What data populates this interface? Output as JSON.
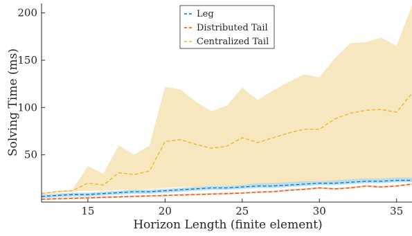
{
  "chart_data": {
    "type": "line",
    "xlabel": "Horizon Length (finite element)",
    "ylabel": "Solving Time (ms)",
    "xlim": [
      12,
      36
    ],
    "ylim": [
      0,
      210
    ],
    "xticks": [
      15,
      20,
      25,
      30,
      35
    ],
    "yticks": [
      50,
      100,
      150,
      200
    ],
    "grid": false,
    "legend_position": "top-center",
    "x": [
      12,
      13,
      14,
      15,
      16,
      17,
      18,
      19,
      20,
      21,
      22,
      23,
      24,
      25,
      26,
      27,
      28,
      29,
      30,
      31,
      32,
      33,
      34,
      35,
      36
    ],
    "series": [
      {
        "name": "Leg",
        "color": "#0072BD",
        "band_color": "#ADD8F0",
        "mean": [
          6,
          7,
          8,
          8,
          9,
          10,
          11,
          11,
          12,
          13,
          14,
          15,
          15,
          16,
          17,
          17,
          18,
          19,
          20,
          20,
          21,
          22,
          22,
          23,
          23
        ],
        "upper": [
          8,
          9,
          10,
          10,
          11,
          12,
          13,
          13,
          14,
          15,
          16,
          17,
          17,
          18,
          20,
          20,
          21,
          22,
          22,
          23,
          24,
          25,
          25,
          26,
          26
        ],
        "lower": [
          4,
          5,
          6,
          6,
          7,
          8,
          9,
          9,
          10,
          11,
          12,
          13,
          13,
          14,
          15,
          15,
          16,
          17,
          18,
          18,
          19,
          20,
          20,
          21,
          21
        ]
      },
      {
        "name": "Distributed Tail",
        "color": "#D95319",
        "band_color": "#F5C9A9",
        "mean": [
          3,
          3.5,
          4,
          4.5,
          5,
          5.5,
          6,
          6.5,
          7,
          7.5,
          8,
          8.5,
          9,
          9.5,
          10.5,
          11,
          12.5,
          13.5,
          15,
          14,
          15,
          17,
          16,
          17,
          19
        ],
        "upper": [
          4,
          4.5,
          5,
          5.5,
          6,
          6.5,
          7,
          7.5,
          8,
          8.5,
          9,
          9.5,
          10,
          10.5,
          11.5,
          12,
          13.5,
          14.5,
          16,
          15,
          16,
          18,
          17,
          18,
          20
        ],
        "lower": [
          2,
          2.5,
          3,
          3.5,
          4,
          4.5,
          5,
          5.5,
          6,
          6.5,
          7,
          7.5,
          8,
          8.5,
          9.5,
          10,
          11.5,
          12.5,
          14,
          13,
          14,
          16,
          15,
          16,
          18
        ]
      },
      {
        "name": "Centralized Tail",
        "color": "#EDB120",
        "band_color": "#F7E7BE",
        "mean": [
          9,
          11,
          12,
          20,
          18,
          31,
          29,
          33,
          64,
          66,
          61,
          57,
          59,
          68,
          63,
          68,
          73,
          77,
          77,
          88,
          94,
          97,
          98,
          95,
          115
        ],
        "upper": [
          10,
          12,
          13,
          38,
          30,
          60,
          50,
          60,
          122,
          119,
          106,
          96,
          102,
          121,
          108,
          118,
          127,
          135,
          132,
          152,
          168,
          169,
          174,
          165,
          208
        ],
        "lower": [
          8,
          10,
          11,
          12,
          12,
          13,
          13,
          14,
          15,
          16,
          16,
          17,
          17,
          18,
          19,
          19,
          20,
          21,
          22,
          22,
          23,
          24,
          24,
          25,
          26
        ]
      }
    ]
  }
}
